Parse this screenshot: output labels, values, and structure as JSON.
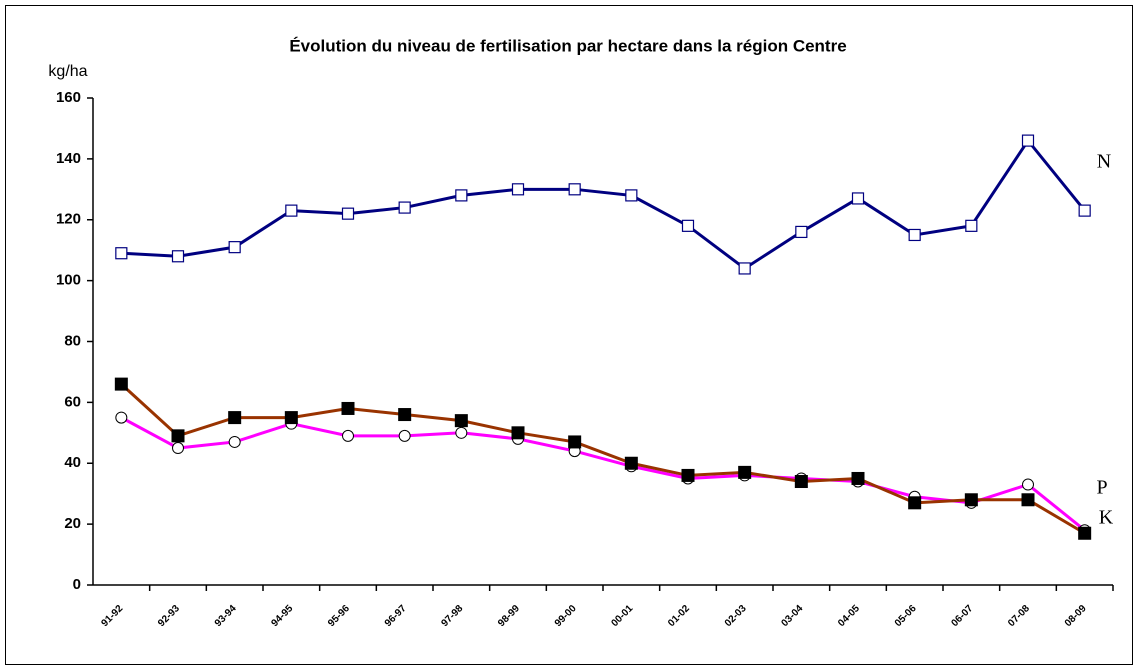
{
  "chart_data": {
    "type": "line",
    "title": "Évolution du niveau de fertilisation par hectare dans la région Centre",
    "y_label": "kg/ha",
    "categories": [
      "91-92",
      "92-93",
      "93-94",
      "94-95",
      "95-96",
      "96-97",
      "97-98",
      "98-99",
      "99-00",
      "00-01",
      "01-02",
      "02-03",
      "03-04",
      "04-05",
      "05-06",
      "06-07",
      "07-08",
      "08-09"
    ],
    "series": [
      {
        "name": "N",
        "color": "#000080",
        "marker": "open-square",
        "values": [
          109,
          108,
          111,
          123,
          122,
          124,
          128,
          130,
          130,
          128,
          118,
          104,
          116,
          127,
          115,
          118,
          146,
          123
        ]
      },
      {
        "name": "P",
        "color": "#ff00ff",
        "marker": "open-circle",
        "values": [
          55,
          45,
          47,
          53,
          49,
          49,
          50,
          48,
          44,
          39,
          35,
          36,
          35,
          34,
          29,
          27,
          33,
          18
        ]
      },
      {
        "name": "K",
        "color": "#993300",
        "marker": "filled-square",
        "values": [
          66,
          49,
          55,
          55,
          58,
          56,
          54,
          50,
          47,
          40,
          36,
          37,
          34,
          35,
          27,
          28,
          28,
          17
        ]
      }
    ],
    "ylim": [
      0,
      160
    ],
    "yticks": [
      0,
      20,
      40,
      60,
      80,
      100,
      120,
      140,
      160
    ],
    "grid": false
  }
}
